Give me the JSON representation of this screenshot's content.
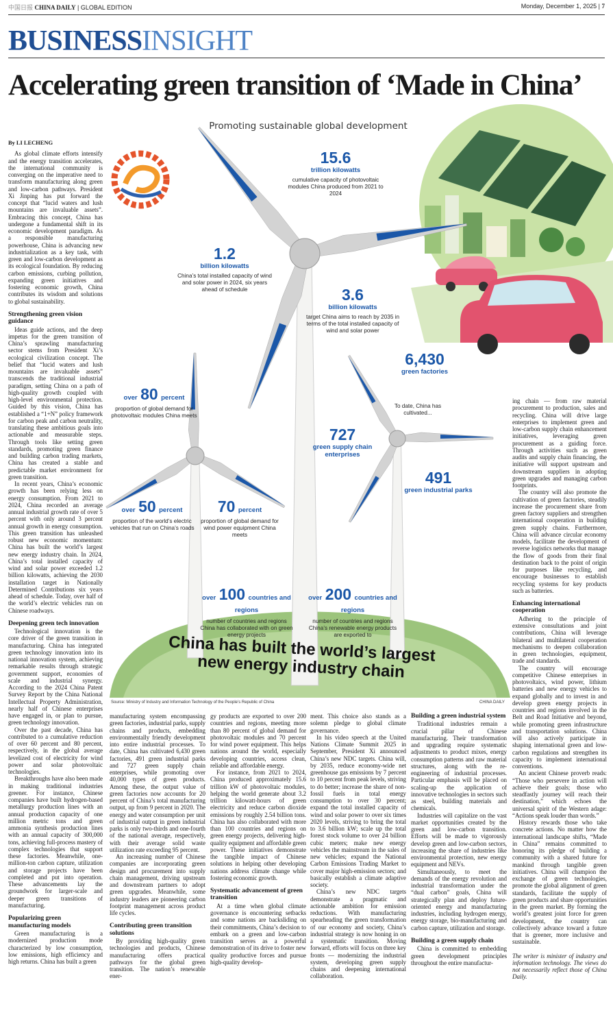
{
  "header": {
    "logo": "中国日报",
    "brand": "CHINA DAILY",
    "edition": "GLOBAL EDITION",
    "date": "Monday, December 1, 2025",
    "page": "7"
  },
  "section": {
    "business": "BUSINESS",
    "insight": "INSIGHT"
  },
  "headline": "Accelerating green transition of ‘Made in China’",
  "infographic": {
    "title": "Promoting sustainable global development",
    "stats": [
      {
        "prefix": null,
        "number": "15.6",
        "unit": "trillion kilowatts",
        "caption": "cumulative capacity of photovoltaic modules China produced from 2021 to 2024"
      },
      {
        "prefix": null,
        "number": "1.2",
        "unit": "billion kilowatts",
        "caption": "China’s total installed capacity of wind and solar power in 2024, six years ahead of schedule"
      },
      {
        "prefix": null,
        "number": "3.6",
        "unit": "billion kilowatts",
        "caption": "target China aims to reach by 2035 in terms of the total installed capacity of wind and solar power"
      },
      {
        "prefix": null,
        "number": "6,430",
        "unit": "green factories",
        "caption": null
      },
      {
        "prefix": null,
        "number": "727",
        "unit": "green supply chain enterprises",
        "caption": null
      },
      {
        "prefix": null,
        "number": "491",
        "unit": "green industrial parks",
        "caption": null
      },
      {
        "prefix": "over",
        "number": "80",
        "unit": "percent",
        "caption": "proportion of global demand for photovoltaic modules China meets"
      },
      {
        "prefix": "over",
        "number": "50",
        "unit": "percent",
        "caption": "proportion of the world’s electric vehicles that run on China’s roads"
      },
      {
        "prefix": null,
        "number": "70",
        "unit": "percent",
        "caption": "proportion of global demand for wind power equipment China meets"
      },
      {
        "prefix": "over",
        "number": "100",
        "unit": "countries and regions",
        "caption": "number of countries and regions China has collaborated with on green energy projects"
      },
      {
        "prefix": "over",
        "number": "200",
        "unit": "countries and regions",
        "caption": "number of countries and regions China’s renewable energy products are exported to"
      }
    ],
    "cultivated_note": "To date, China has cultivated...",
    "banner": [
      "China has built the world’s largest",
      "new energy industry chain"
    ],
    "source": "Source: Ministry of Industry and Information Technology of the People’s Republic of China",
    "credit": "CHINA DAILY"
  },
  "article": {
    "columns": [
      [
        {
          "type": "byline",
          "text": "By LI LECHENG"
        },
        {
          "type": "paragraph",
          "text": "As global climate efforts intensify and the energy transition accelerates, the international community is converging on the imperative need to transform manufacturing along green and low-carbon pathways. President Xi Jinping has put forward the concept that “lucid waters and lush mountains are invaluable assets”. Embracing this concept, China has undergone a fundamental shift in its economic development paradigm. As a responsible manufacturing powerhouse, China is advancing new industrialization as a key task, with green and low-carbon development as its ecological foundation. By reducing carbon emissions, curbing pollution, expanding green initiatives and fostering economic growth, China contributes its wisdom and solutions to global sustainability."
        },
        {
          "type": "heading",
          "text": "Strengthening green vision guidance"
        },
        {
          "type": "paragraph",
          "text": "Ideas guide actions, and the deep impetus for the green transition of China’s sprawling manufacturing sector stems from President Xi’s ecological civilization concept. The belief that “lucid waters and lush mountains are invaluable assets” transcends the traditional industrial paradigm, setting China on a path of high-quality growth coupled with high-level environmental protection. Guided by this vision, China has established a “1+N” policy framework for carbon peak and carbon neutrality, translating these ambitious goals into actionable and measurable steps. Through tools like setting green standards, promoting green finance and building carbon trading markets, China has created a stable and predictable market environment for green transition."
        },
        {
          "type": "paragraph",
          "text": "In recent years, China’s economic growth has been relying less on energy consumption. From 2021 to 2024, China recorded an average annual industrial growth rate of over 5 percent with only around 3 percent annual growth in energy consumption. This green transition has unleashed robust new economic momentum: China has built the world’s largest new energy industry chain. In 2024, China’s total installed capacity of wind and solar power exceeded 1.2 billion kilowatts, achieving the 2030 installation target in Nationally Determined Contributions six years ahead of schedule. Today, over half of the world’s electric vehicles run on Chinese roadways."
        },
        {
          "type": "heading",
          "text": "Deepening green tech innovation"
        },
        {
          "type": "paragraph",
          "text": "Technological innovation is the core driver of the green transition in manufacturing. China has integrated green technology innovation into its national innovation system, achieving remarkable results through strategic government support, economies of scale and industrial synergy. According to the 2024 China Patent Survey Report by the China National Intellectual Property Administration, nearly half of Chinese enterprises have engaged in, or plan to pursue, green technology innovation."
        },
        {
          "type": "paragraph",
          "text": "Over the past decade, China has contributed to a cumulative reduction of over 60 percent and 80 percent, respectively, in the global average levelized cost of electricity for wind power and solar photovoltaic technologies."
        },
        {
          "type": "paragraph",
          "text": "Breakthroughs have also been made in making traditional industries greener. For instance, Chinese companies have built hydrogen-based metallurgy production lines with an annual production capacity of one million metric tons and green ammonia synthesis production lines with an annual capacity of 300,000 tons, achieving full-process mastery of complex technologies that support these factories. Meanwhile, one-million-ton carbon capture, utilization and storage projects have been completed and put into operation. These advancements lay the groundwork for larger-scale and deeper green transitions of manufacturing."
        },
        {
          "type": "heading",
          "text": "Popularizing green manufacturing models"
        },
        {
          "type": "paragraph",
          "text": "Green manufacturing is a modernized production mode characterized by low consumption, low emissions, high efficiency and high returns. China has built a green"
        }
      ],
      [
        {
          "type": "continued",
          "text": "manufacturing system encompassing green factories, industrial parks, supply chains and products, embedding environmentally friendly development into entire industrial processes. To date, China has cultivated 6,430 green factories, 491 green industrial parks and 727 green supply chain enterprises, while promoting over 40,000 types of green products. Among these, the output value of green factories now accounts for 20 percent of China’s total manufacturing output, up from 9 percent in 2020. The energy and water consumption per unit of industrial output in green industrial parks is only two-thirds and one-fourth of the national average, respectively, with their average solid waste utilization rate exceeding 95 percent."
        },
        {
          "type": "paragraph",
          "text": "An increasing number of Chinese companies are incorporating green design and procurement into supply chain management, driving upstream and downstream partners to adopt green upgrades. Meanwhile, some industry leaders are pioneering carbon footprint management across product life cycles."
        },
        {
          "type": "heading",
          "text": "Contributing green transition solutions"
        },
        {
          "type": "paragraph",
          "text": "By providing high-quality green technologies and products, Chinese manufacturing offers practical pathways for the global green transition. The nation’s renewable ener-"
        }
      ],
      [
        {
          "type": "continued",
          "text": "gy products are exported to over 200 countries and regions, meeting more than 80 percent of global demand for photovoltaic modules and 70 percent for wind power equipment. This helps nations around the world, especially developing countries, access clean, reliable and affordable energy."
        },
        {
          "type": "paragraph",
          "text": "For instance, from 2021 to 2024, China produced approximately 15.6 trillion kW of photovoltaic modules, helping the world generate about 3.2 trillion kilowatt-hours of green electricity and reduce carbon dioxide emissions by roughly 2.54 billion tons. China has also collaborated with more than 100 countries and regions on green energy projects, delivering high-quality equipment and affordable green power. These initiatives demonstrate the tangible impact of Chinese solutions in helping other developing nations address climate change while fostering economic growth."
        },
        {
          "type": "heading",
          "text": "Systematic advancement of green transition"
        },
        {
          "type": "paragraph",
          "text": "At a time when global climate governance is encountering setbacks and some nations are backsliding on their commitments, China’s decision to embark on a green and low-carbon transition serves as a powerful demonstration of its drive to foster new quality productive forces and pursue high-quality develop-"
        }
      ],
      [
        {
          "type": "continued",
          "text": "ment. This choice also stands as a solemn pledge to global climate governance."
        },
        {
          "type": "paragraph",
          "text": "In his video speech at the United Nations Climate Summit 2025 in September, President Xi announced China’s new NDC targets. China will, by 2035, reduce economy-wide net greenhouse gas emissions by 7 percent to 10 percent from peak levels, striving to do better; increase the share of non-fossil fuels in total energy consumption to over 30 percent; expand the total installed capacity of wind and solar power to over six times 2020 levels, striving to bring the total to 3.6 billion kW; scale up the total forest stock volume to over 24 billion cubic meters; make new energy vehicles the mainstream in the sales of new vehicles; expand the National Carbon Emissions Trading Market to cover major high-emission sectors; and basically establish a climate adaptive society."
        },
        {
          "type": "paragraph",
          "text": "China’s new NDC targets demonstrate a pragmatic and actionable ambition for emission reductions. With manufacturing spearheading the green transformation of our economy and society, China’s industrial strategy is now honing in on a systematic transition. Moving forward, efforts will focus on three key fronts — modernizing the industrial system, developing green supply chains and deepening international collaboration."
        }
      ],
      [
        {
          "type": "heading",
          "text": "Building a green industrial system"
        },
        {
          "type": "paragraph",
          "text": "Traditional industries remain a crucial pillar of Chinese manufacturing. Their transformation and upgrading require systematic adjustments to product mixes, energy consumption patterns and raw material structures, along with the re-engineering of industrial processes. Particular emphasis will be placed on scaling-up the application of innovative technologies in sectors such as steel, building materials and chemicals."
        },
        {
          "type": "paragraph",
          "text": "Industries will capitalize on the vast market opportunities created by the green and low-carbon transition. Efforts will be made to vigorously develop green and low-carbon sectors, increasing the share of industries like environmental protection, new energy equipment and NEVs."
        },
        {
          "type": "paragraph",
          "text": "Simultaneously, to meet the demands of the energy revolution and industrial transformation under the “dual carbon” goals, China will strategically plan and deploy future-oriented energy and manufacturing industries, including hydrogen energy, energy storage, bio-manufacturing and carbon capture, utilization and storage."
        },
        {
          "type": "heading",
          "text": "Building a green supply chain"
        },
        {
          "type": "paragraph",
          "text": "China is committed to embedding green development principles throughout the entire manufactur-"
        }
      ],
      [
        {
          "type": "continued",
          "text": "ing chain — from raw material procurement to production, sales and recycling. China will drive large enterprises to implement green and low-carbon supply chain enhancement initiatives, leveraging green procurement as a guiding force. Through activities such as green audits and supply chain financing, the initiative will support upstream and downstream suppliers in adopting green upgrades and managing carbon footprints."
        },
        {
          "type": "paragraph",
          "text": "The country will also promote the cultivation of green factories, steadily increase the procurement share from green factory suppliers and strengthen international cooperation in building green supply chains. Furthermore, China will advance circular economy models, facilitate the development of reverse logistics networks that manage the flow of goods from their final destination back to the point of origin for purposes like recycling, and encourage businesses to establish recycling systems for key products such as batteries."
        },
        {
          "type": "heading",
          "text": "Enhancing international cooperation"
        },
        {
          "type": "paragraph",
          "text": "Adhering to the principle of extensive consultations and joint contributions, China will leverage bilateral and multilateral cooperation mechanisms to deepen collaboration in green technologies, equipment, trade and standards."
        },
        {
          "type": "paragraph",
          "text": "The country will encourage competitive Chinese enterprises in photovoltaics, wind power, lithium batteries and new energy vehicles to expand globally and to invest in and develop green energy projects in countries and regions involved in the Belt and Road Initiative and beyond, while promoting green infrastructure and transportation solutions. China will also actively participate in shaping international green and low-carbon regulations and strengthen its capacity to implement international conventions."
        },
        {
          "type": "paragraph",
          "text": "An ancient Chinese proverb reads: “Those who persevere in action will achieve their goals; those who steadfastly journey will reach their destination,” which echoes the universal spirit of the Western adage: “Actions speak louder than words.”"
        },
        {
          "type": "paragraph",
          "text": "History rewards those who take concrete actions. No matter how the international landscape shifts, “Made in China” remains committed to honoring its pledge of building a community with a shared future for mankind through tangible green initiatives. China will champion the exchange of green technologies, promote the global alignment of green standards, facilitate the supply of green products and share opportunities in the green market. By forming the world’s greatest joint force for green development, the country can collectively advance toward a future that is greener, more inclusive and sustainable."
        },
        {
          "type": "note",
          "text": "The writer is minister of industry and information technology. The views do not necessarily reflect those of China Daily."
        }
      ]
    ]
  }
}
